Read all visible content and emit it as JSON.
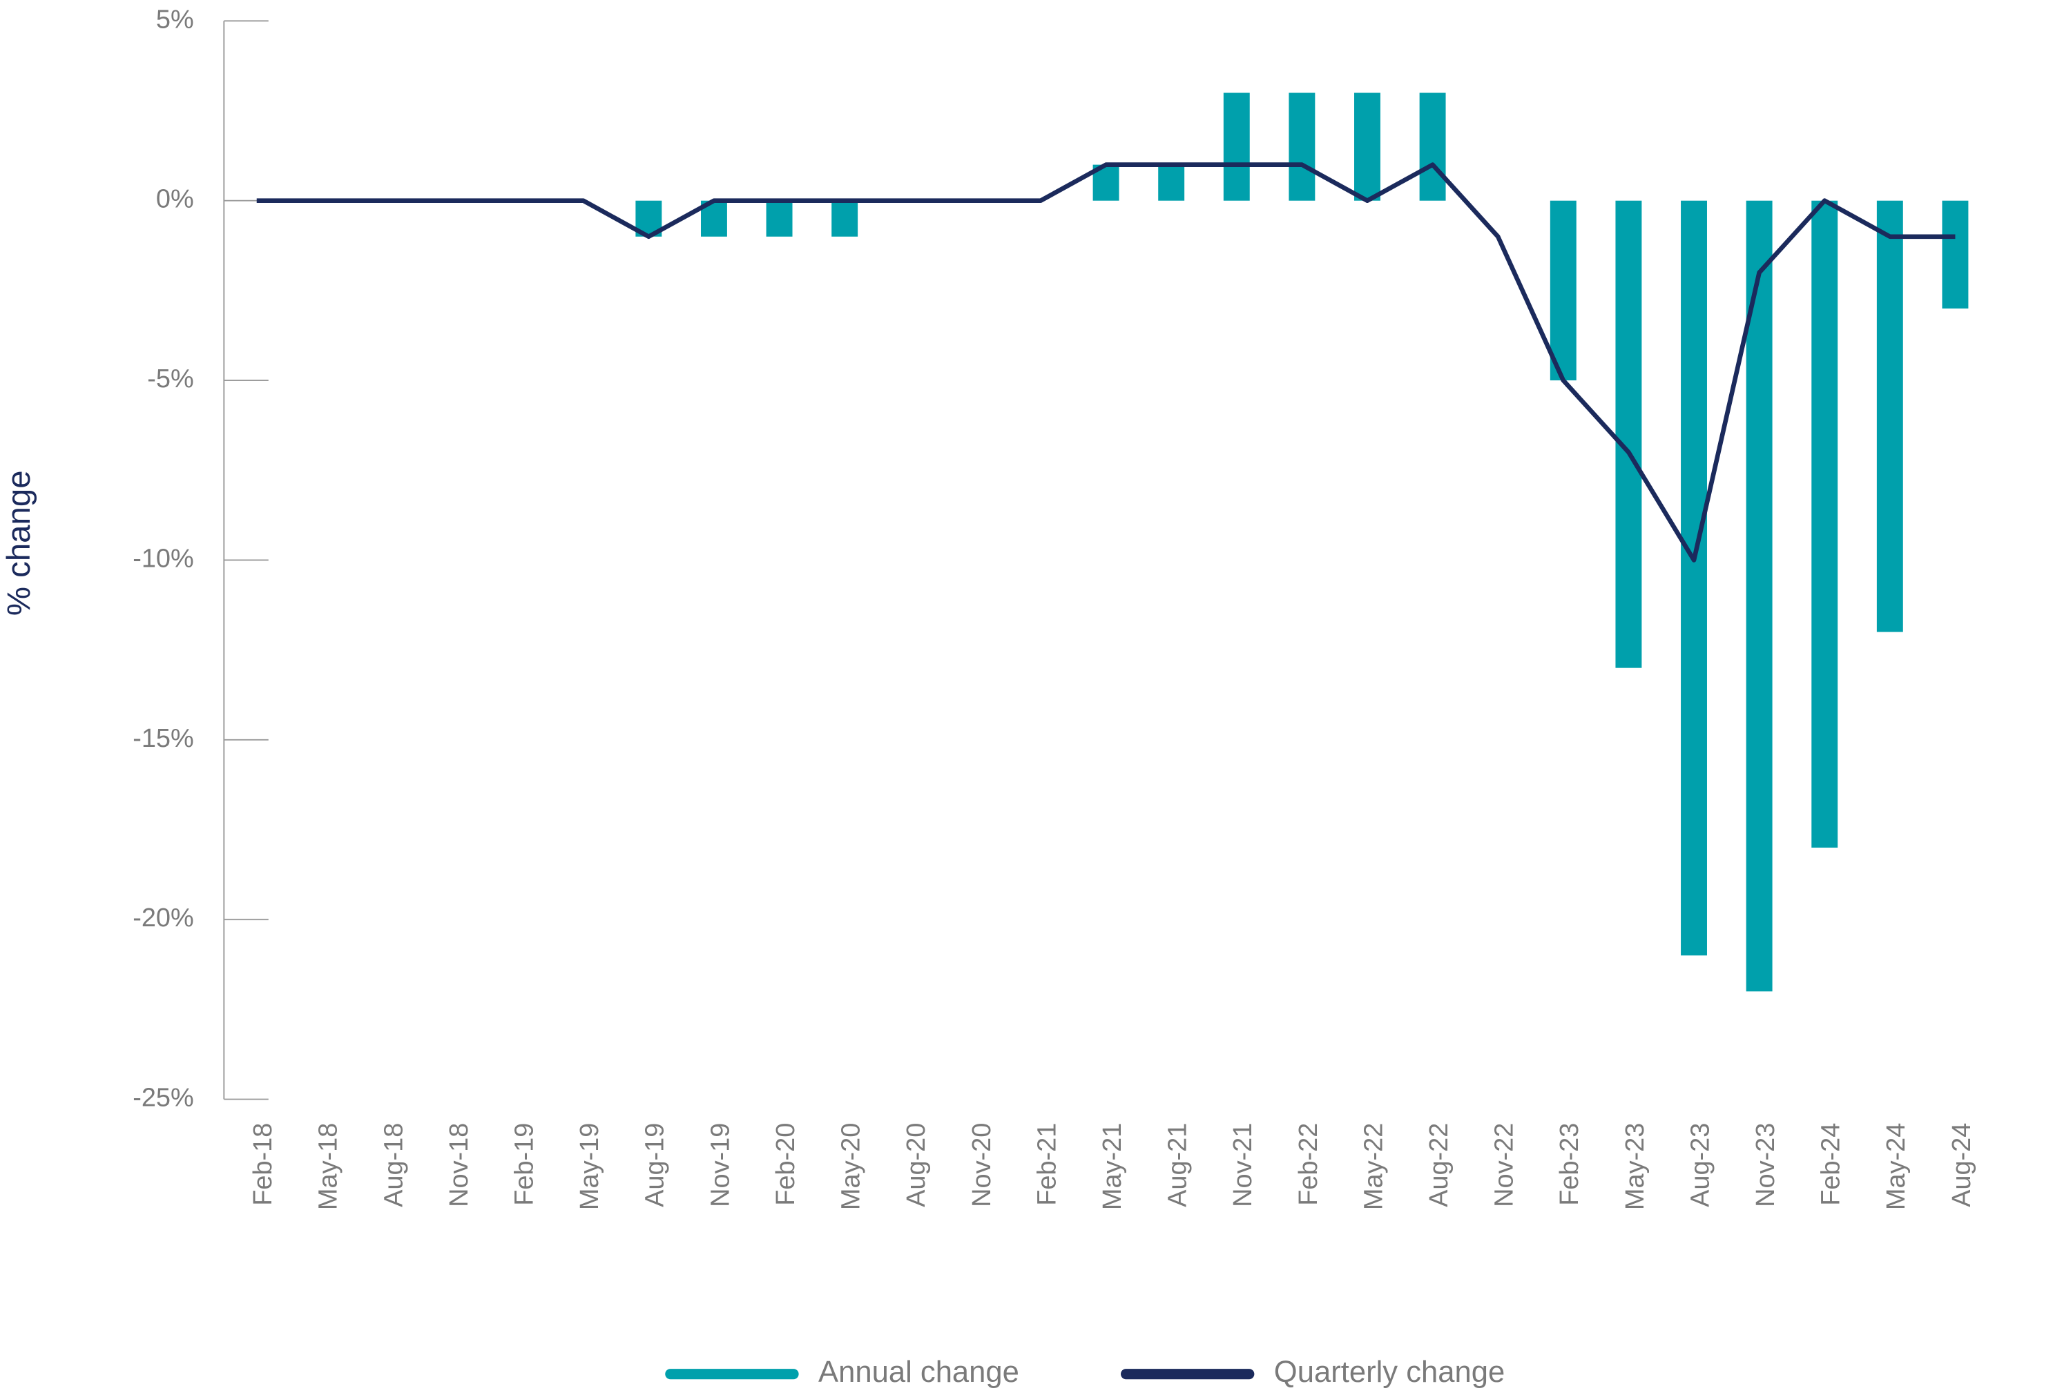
{
  "chart_data": {
    "type": "bar-line",
    "y_axis_label": "% change",
    "categories": [
      "Feb-18",
      "May-18",
      "Aug-18",
      "Nov-18",
      "Feb-19",
      "May-19",
      "Aug-19",
      "Nov-19",
      "Feb-20",
      "May-20",
      "Aug-20",
      "Nov-20",
      "Feb-21",
      "May-21",
      "Aug-21",
      "Nov-21",
      "Feb-22",
      "May-22",
      "Aug-22",
      "Nov-22",
      "Feb-23",
      "May-23",
      "Aug-23",
      "Nov-23",
      "Feb-24",
      "May-24",
      "Aug-24"
    ],
    "series": [
      {
        "name": "Annual change",
        "type": "bar",
        "color": "#00a0ac",
        "values": [
          0,
          0,
          0,
          0,
          0,
          0,
          -1,
          -1,
          -1,
          -1,
          0,
          0,
          0,
          1,
          1,
          3,
          3,
          3,
          3,
          0,
          -5,
          -13,
          -21,
          -22,
          -18,
          -12,
          -3
        ]
      },
      {
        "name": "Quarterly change",
        "type": "line",
        "color": "#1b2a5c",
        "values": [
          0,
          0,
          0,
          0,
          0,
          0,
          -1,
          0,
          0,
          0,
          0,
          0,
          0,
          1,
          1,
          1,
          1,
          0,
          1,
          -1,
          -5,
          -7,
          -10,
          -2,
          0,
          -1,
          -1
        ]
      }
    ],
    "ylim": [
      -25,
      5
    ],
    "yticks": [
      {
        "value": 5,
        "label": "5%"
      },
      {
        "value": 0,
        "label": "0%"
      },
      {
        "value": -5,
        "label": "-5%"
      },
      {
        "value": -10,
        "label": "-10%"
      },
      {
        "value": -15,
        "label": "-15%"
      },
      {
        "value": -20,
        "label": "-20%"
      },
      {
        "value": -25,
        "label": "-25%"
      }
    ]
  }
}
